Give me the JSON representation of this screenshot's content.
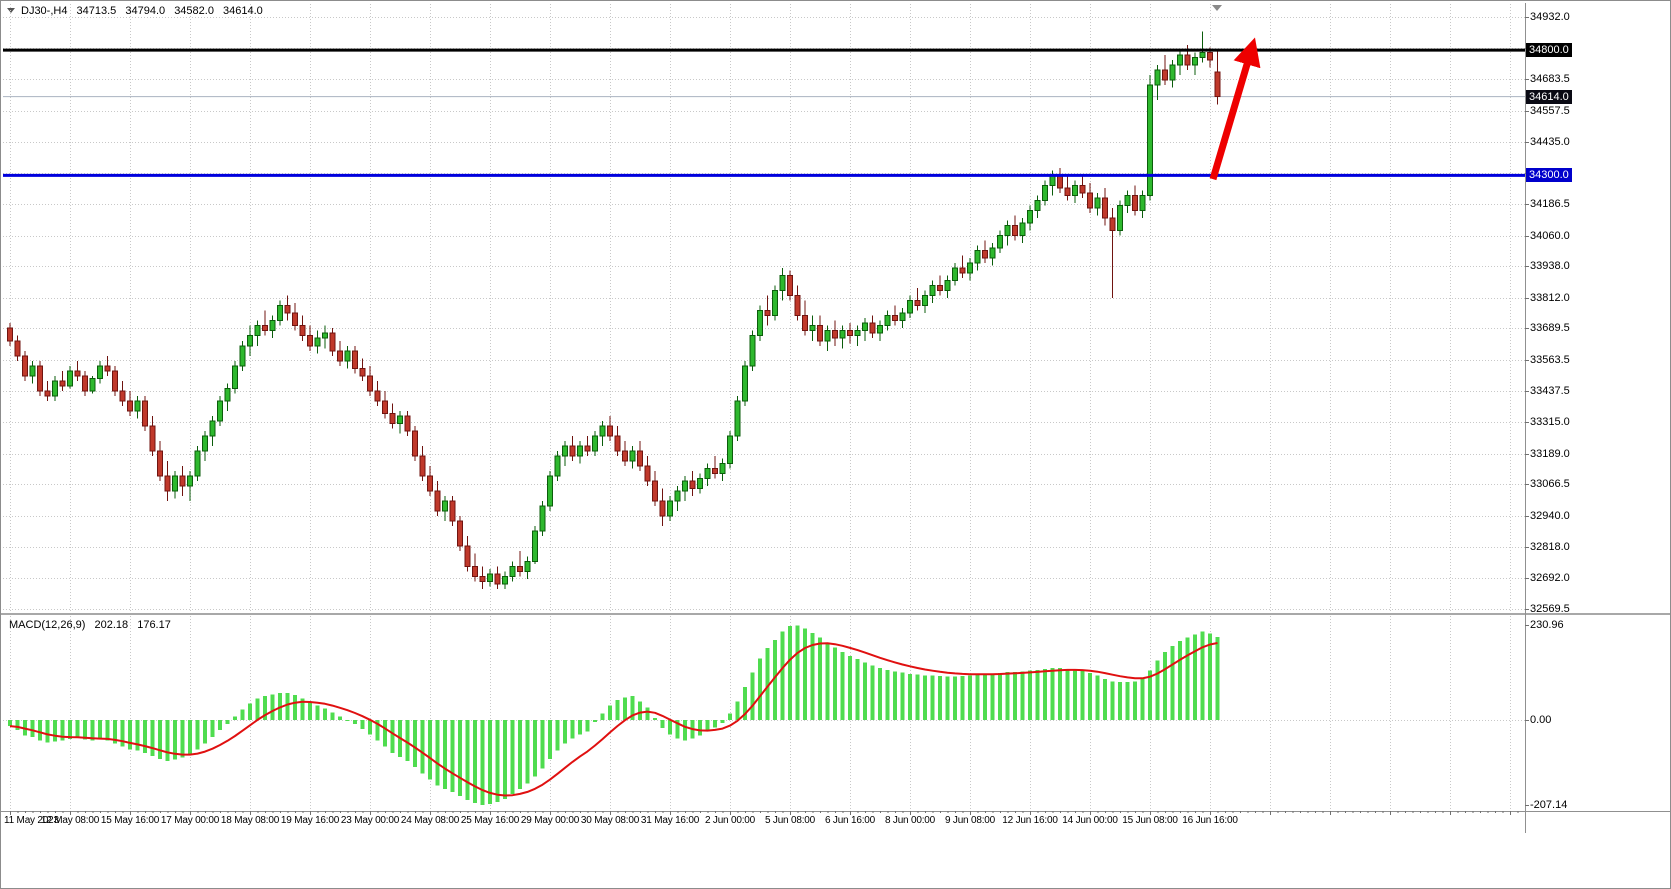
{
  "header": {
    "symbol_period": "DJ30-,H4",
    "open": "34713.5",
    "high": "34794.0",
    "low": "34582.0",
    "close": "34614.0"
  },
  "macd_header": {
    "label": "MACD(12,26,9)",
    "macd_value": "202.18",
    "signal_value": "176.17"
  },
  "price_axis": {
    "ticks": [
      {
        "p": 34932.0,
        "label": "34932.0"
      },
      {
        "p": 34807.75,
        "label": null
      },
      {
        "p": 34683.5,
        "label": "34683.5"
      },
      {
        "p": 34557.5,
        "label": "34557.5"
      },
      {
        "p": 34435.0,
        "label": "34435.0"
      },
      {
        "p": 34310.75,
        "label": null
      },
      {
        "p": 34186.5,
        "label": "34186.5"
      },
      {
        "p": 34060.0,
        "label": "34060.0"
      },
      {
        "p": 33938.0,
        "label": "33938.0"
      },
      {
        "p": 33812.0,
        "label": "33812.0"
      },
      {
        "p": 33689.5,
        "label": "33689.5"
      },
      {
        "p": 33563.5,
        "label": "33563.5"
      },
      {
        "p": 33437.5,
        "label": "33437.5"
      },
      {
        "p": 33315.0,
        "label": "33315.0"
      },
      {
        "p": 33189.0,
        "label": "33189.0"
      },
      {
        "p": 33066.5,
        "label": "33066.5"
      },
      {
        "p": 32940.0,
        "label": "32940.0"
      },
      {
        "p": 32818.0,
        "label": "32818.0"
      },
      {
        "p": 32692.0,
        "label": "32692.0"
      },
      {
        "p": 32569.5,
        "label": "32569.5"
      }
    ],
    "tags": [
      {
        "price": 34800.0,
        "label": "34800.0",
        "color": "#000000"
      },
      {
        "price": 34614.0,
        "label": "34614.0",
        "color": "#0a0a14"
      },
      {
        "price": 34300.0,
        "label": "34300.0",
        "color": "#0000cc"
      }
    ]
  },
  "time_axis": {
    "labels": [
      "11 May 2023",
      "12 May 08:00",
      "15 May 16:00",
      "17 May 00:00",
      "18 May 08:00",
      "19 May 16:00",
      "23 May 00:00",
      "24 May 08:00",
      "25 May 16:00",
      "29 May 00:00",
      "30 May 08:00",
      "31 May 16:00",
      "2 Jun 00:00",
      "5 Jun 08:00",
      "6 Jun 16:00",
      "8 Jun 00:00",
      "9 Jun 08:00",
      "12 Jun 16:00",
      "14 Jun 00:00",
      "15 Jun 08:00",
      "16 Jun 16:00"
    ]
  },
  "macd_axis": {
    "top": "230.96",
    "zero": "0.00",
    "bottom": "-207.14"
  },
  "colors": {
    "bull": "#2eb82e",
    "bull_border": "#0b5d0b",
    "bear": "#c0392b",
    "bear_border": "#701410",
    "histogram": "#4fdc4f",
    "signal": "#e01010",
    "grid": "#c8c8c8",
    "arrow": "#ee0000",
    "resistance": "#000000",
    "support": "#0000dd",
    "bid_line": "#aab2c0"
  },
  "chart_data": {
    "type": "candlestick_with_macd",
    "symbol": "DJ30-",
    "timeframe": "H4",
    "y_range": [
      32569.5,
      34932.0
    ],
    "macd_range": [
      -207.14,
      230.96
    ],
    "signal_period": 9,
    "bid_price": 34614.0,
    "hlines": [
      {
        "price": 34800.0,
        "color": "#000000",
        "width": 3
      },
      {
        "price": 34300.0,
        "color": "#0000dd",
        "width": 3
      }
    ],
    "arrow": {
      "x1_bar": 160.8,
      "from_price": 34285,
      "x2_bar": 165.6,
      "to_price": 34770,
      "color": "#ee0000"
    },
    "candles": [
      [
        33690,
        33710,
        33620,
        33640
      ],
      [
        33640,
        33660,
        33560,
        33580
      ],
      [
        33580,
        33600,
        33480,
        33500
      ],
      [
        33500,
        33560,
        33470,
        33540
      ],
      [
        33540,
        33560,
        33420,
        33440
      ],
      [
        33440,
        33480,
        33400,
        33420
      ],
      [
        33420,
        33500,
        33400,
        33480
      ],
      [
        33480,
        33520,
        33440,
        33460
      ],
      [
        33460,
        33540,
        33450,
        33520
      ],
      [
        33520,
        33560,
        33480,
        33500
      ],
      [
        33500,
        33520,
        33420,
        33440
      ],
      [
        33440,
        33500,
        33430,
        33490
      ],
      [
        33490,
        33560,
        33470,
        33540
      ],
      [
        33540,
        33580,
        33500,
        33520
      ],
      [
        33520,
        33540,
        33420,
        33440
      ],
      [
        33440,
        33480,
        33380,
        33400
      ],
      [
        33400,
        33440,
        33340,
        33360
      ],
      [
        33360,
        33420,
        33330,
        33400
      ],
      [
        33400,
        33420,
        33280,
        33300
      ],
      [
        33300,
        33340,
        33180,
        33200
      ],
      [
        33200,
        33240,
        33080,
        33100
      ],
      [
        33100,
        33160,
        33000,
        33040
      ],
      [
        33040,
        33120,
        33010,
        33100
      ],
      [
        33100,
        33140,
        33020,
        33060
      ],
      [
        33060,
        33120,
        33000,
        33100
      ],
      [
        33100,
        33220,
        33080,
        33200
      ],
      [
        33200,
        33280,
        33160,
        33260
      ],
      [
        33260,
        33340,
        33220,
        33320
      ],
      [
        33320,
        33420,
        33300,
        33400
      ],
      [
        33400,
        33470,
        33360,
        33450
      ],
      [
        33450,
        33560,
        33430,
        33540
      ],
      [
        33540,
        33640,
        33520,
        33620
      ],
      [
        33620,
        33700,
        33580,
        33660
      ],
      [
        33660,
        33720,
        33620,
        33700
      ],
      [
        33700,
        33760,
        33660,
        33680
      ],
      [
        33680,
        33740,
        33650,
        33720
      ],
      [
        33720,
        33800,
        33700,
        33780
      ],
      [
        33780,
        33820,
        33720,
        33750
      ],
      [
        33750,
        33790,
        33680,
        33700
      ],
      [
        33700,
        33740,
        33640,
        33660
      ],
      [
        33660,
        33700,
        33600,
        33620
      ],
      [
        33620,
        33680,
        33590,
        33650
      ],
      [
        33650,
        33700,
        33610,
        33670
      ],
      [
        33670,
        33690,
        33580,
        33600
      ],
      [
        33600,
        33640,
        33540,
        33560
      ],
      [
        33560,
        33620,
        33530,
        33600
      ],
      [
        33600,
        33620,
        33510,
        33530
      ],
      [
        33530,
        33570,
        33480,
        33500
      ],
      [
        33500,
        33540,
        33420,
        33440
      ],
      [
        33440,
        33480,
        33380,
        33400
      ],
      [
        33400,
        33440,
        33330,
        33350
      ],
      [
        33350,
        33390,
        33290,
        33310
      ],
      [
        33310,
        33360,
        33270,
        33340
      ],
      [
        33340,
        33360,
        33260,
        33280
      ],
      [
        33280,
        33300,
        33160,
        33180
      ],
      [
        33180,
        33220,
        33080,
        33100
      ],
      [
        33100,
        33140,
        33020,
        33040
      ],
      [
        33040,
        33080,
        32940,
        32960
      ],
      [
        32960,
        33020,
        32920,
        33000
      ],
      [
        33000,
        33020,
        32900,
        32920
      ],
      [
        32920,
        32940,
        32800,
        32820
      ],
      [
        32820,
        32860,
        32720,
        32740
      ],
      [
        32740,
        32790,
        32680,
        32700
      ],
      [
        32700,
        32740,
        32650,
        32680
      ],
      [
        32680,
        32730,
        32660,
        32710
      ],
      [
        32710,
        32740,
        32650,
        32670
      ],
      [
        32670,
        32720,
        32650,
        32700
      ],
      [
        32700,
        32760,
        32680,
        32740
      ],
      [
        32740,
        32800,
        32700,
        32720
      ],
      [
        32720,
        32780,
        32690,
        32760
      ],
      [
        32760,
        32900,
        32750,
        32880
      ],
      [
        32880,
        33000,
        32860,
        32980
      ],
      [
        32980,
        33120,
        32960,
        33100
      ],
      [
        33100,
        33200,
        33080,
        33180
      ],
      [
        33180,
        33240,
        33140,
        33220
      ],
      [
        33220,
        33260,
        33160,
        33180
      ],
      [
        33180,
        33240,
        33150,
        33220
      ],
      [
        33220,
        33260,
        33180,
        33200
      ],
      [
        33200,
        33280,
        33180,
        33260
      ],
      [
        33260,
        33320,
        33220,
        33300
      ],
      [
        33300,
        33340,
        33240,
        33260
      ],
      [
        33260,
        33300,
        33180,
        33200
      ],
      [
        33200,
        33240,
        33140,
        33160
      ],
      [
        33160,
        33220,
        33130,
        33200
      ],
      [
        33200,
        33240,
        33120,
        33140
      ],
      [
        33140,
        33180,
        33060,
        33080
      ],
      [
        33080,
        33120,
        32980,
        33000
      ],
      [
        33000,
        33050,
        32900,
        32940
      ],
      [
        32940,
        33020,
        32920,
        33000
      ],
      [
        33000,
        33060,
        32960,
        33040
      ],
      [
        33040,
        33100,
        33000,
        33080
      ],
      [
        33080,
        33120,
        33020,
        33050
      ],
      [
        33050,
        33110,
        33030,
        33090
      ],
      [
        33090,
        33150,
        33060,
        33130
      ],
      [
        33130,
        33180,
        33090,
        33110
      ],
      [
        33110,
        33170,
        33080,
        33150
      ],
      [
        33150,
        33280,
        33130,
        33260
      ],
      [
        33260,
        33420,
        33240,
        33400
      ],
      [
        33400,
        33560,
        33380,
        33540
      ],
      [
        33540,
        33680,
        33520,
        33660
      ],
      [
        33660,
        33780,
        33640,
        33760
      ],
      [
        33760,
        33820,
        33700,
        33740
      ],
      [
        33740,
        33860,
        33720,
        33840
      ],
      [
        33840,
        33930,
        33800,
        33900
      ],
      [
        33900,
        33920,
        33800,
        33820
      ],
      [
        33820,
        33860,
        33720,
        33740
      ],
      [
        33740,
        33800,
        33660,
        33680
      ],
      [
        33680,
        33740,
        33640,
        33700
      ],
      [
        33700,
        33740,
        33620,
        33640
      ],
      [
        33640,
        33700,
        33600,
        33680
      ],
      [
        33680,
        33720,
        33620,
        33650
      ],
      [
        33650,
        33700,
        33610,
        33680
      ],
      [
        33680,
        33710,
        33630,
        33660
      ],
      [
        33660,
        33700,
        33620,
        33680
      ],
      [
        33680,
        33730,
        33640,
        33710
      ],
      [
        33710,
        33740,
        33650,
        33670
      ],
      [
        33670,
        33720,
        33640,
        33700
      ],
      [
        33700,
        33760,
        33680,
        33740
      ],
      [
        33740,
        33780,
        33700,
        33720
      ],
      [
        33720,
        33770,
        33690,
        33750
      ],
      [
        33750,
        33820,
        33730,
        33800
      ],
      [
        33800,
        33850,
        33760,
        33780
      ],
      [
        33780,
        33840,
        33750,
        33820
      ],
      [
        33820,
        33880,
        33790,
        33860
      ],
      [
        33860,
        33900,
        33820,
        33840
      ],
      [
        33840,
        33900,
        33810,
        33880
      ],
      [
        33880,
        33950,
        33860,
        33930
      ],
      [
        33930,
        33980,
        33890,
        33910
      ],
      [
        33910,
        33970,
        33880,
        33950
      ],
      [
        33950,
        34020,
        33920,
        34000
      ],
      [
        34000,
        34040,
        33950,
        33970
      ],
      [
        33970,
        34030,
        33940,
        34010
      ],
      [
        34010,
        34080,
        33990,
        34060
      ],
      [
        34060,
        34120,
        34020,
        34100
      ],
      [
        34100,
        34140,
        34040,
        34060
      ],
      [
        34060,
        34130,
        34030,
        34110
      ],
      [
        34110,
        34180,
        34080,
        34160
      ],
      [
        34160,
        34220,
        34130,
        34200
      ],
      [
        34200,
        34280,
        34180,
        34260
      ],
      [
        34260,
        34320,
        34220,
        34300
      ],
      [
        34300,
        34330,
        34230,
        34250
      ],
      [
        34250,
        34300,
        34200,
        34220
      ],
      [
        34220,
        34280,
        34190,
        34260
      ],
      [
        34260,
        34300,
        34210,
        34230
      ],
      [
        34230,
        34270,
        34150,
        34170
      ],
      [
        34170,
        34230,
        34140,
        34210
      ],
      [
        34210,
        34250,
        34100,
        34130
      ],
      [
        34130,
        34170,
        33810,
        34080
      ],
      [
        34080,
        34200,
        34060,
        34180
      ],
      [
        34180,
        34240,
        34150,
        34220
      ],
      [
        34220,
        34260,
        34140,
        34160
      ],
      [
        34160,
        34240,
        34130,
        34220
      ],
      [
        34220,
        34700,
        34200,
        34660
      ],
      [
        34660,
        34740,
        34600,
        34720
      ],
      [
        34720,
        34780,
        34660,
        34680
      ],
      [
        34680,
        34760,
        34650,
        34740
      ],
      [
        34740,
        34800,
        34700,
        34780
      ],
      [
        34780,
        34820,
        34720,
        34740
      ],
      [
        34740,
        34790,
        34700,
        34770
      ],
      [
        34770,
        34875,
        34750,
        34790
      ],
      [
        34790,
        34810,
        34730,
        34760
      ],
      [
        34713.5,
        34794,
        34582,
        34614
      ]
    ],
    "macd": [
      -15,
      -25,
      -38,
      -42,
      -50,
      -55,
      -52,
      -50,
      -46,
      -44,
      -48,
      -50,
      -48,
      -50,
      -58,
      -65,
      -72,
      -75,
      -80,
      -88,
      -95,
      -100,
      -96,
      -92,
      -85,
      -72,
      -58,
      -42,
      -25,
      -10,
      8,
      25,
      40,
      52,
      58,
      62,
      66,
      65,
      60,
      52,
      42,
      35,
      28,
      18,
      8,
      0,
      -10,
      -22,
      -35,
      -50,
      -65,
      -80,
      -90,
      -100,
      -115,
      -130,
      -145,
      -160,
      -168,
      -175,
      -185,
      -195,
      -202,
      -207,
      -205,
      -200,
      -192,
      -180,
      -168,
      -155,
      -138,
      -118,
      -95,
      -75,
      -58,
      -45,
      -35,
      -28,
      -5,
      15,
      35,
      48,
      55,
      58,
      45,
      30,
      5,
      -20,
      -35,
      -45,
      -50,
      -45,
      -38,
      -28,
      -18,
      -8,
      15,
      45,
      80,
      115,
      150,
      175,
      195,
      215,
      228,
      230,
      222,
      212,
      200,
      188,
      176,
      165,
      155,
      148,
      140,
      132,
      126,
      122,
      118,
      115,
      112,
      110,
      108,
      108,
      107,
      106,
      106,
      107,
      108,
      110,
      111,
      112,
      114,
      116,
      117,
      118,
      120,
      122,
      124,
      126,
      126,
      124,
      122,
      119,
      114,
      108,
      100,
      94,
      92,
      92,
      94,
      100,
      120,
      145,
      165,
      180,
      192,
      200,
      208,
      215,
      210,
      202.18
    ]
  }
}
